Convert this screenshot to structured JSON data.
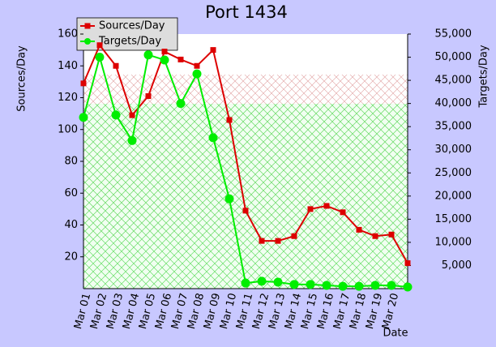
{
  "chart_data": {
    "type": "line",
    "title": "Port 1434",
    "ylabel": "Sources/Day",
    "y2label": "Targets/Day",
    "xlabel": "Date",
    "categories": [
      "Mar 01",
      "Mar 02",
      "Mar 03",
      "Mar 04",
      "Mar 05",
      "Mar 06",
      "Mar 07",
      "Mar 08",
      "Mar 09",
      "Mar 10",
      "Mar 11",
      "Mar 12",
      "Mar 13",
      "Mar 14",
      "Mar 15",
      "Mar 16",
      "Mar 17",
      "Mar 18",
      "Mar 19",
      "Mar 20",
      null
    ],
    "series": [
      {
        "name": "Sources/Day",
        "color": "#dd0000",
        "values": [
          129,
          153,
          140,
          109,
          121,
          149,
          144,
          140,
          150,
          106,
          49,
          30,
          30,
          33,
          50,
          52,
          48,
          37,
          33,
          34,
          16
        ]
      },
      {
        "name": "Targets/Day",
        "color": "#00ee00",
        "axis": "y2",
        "values": [
          37000,
          50000,
          37500,
          32000,
          50500,
          49400,
          40000,
          46400,
          32600,
          19400,
          1200,
          1600,
          1400,
          900,
          900,
          700,
          500,
          500,
          700,
          700,
          350
        ]
      }
    ],
    "ylim": [
      0,
      160
    ],
    "yticks": [
      20,
      40,
      60,
      80,
      100,
      120,
      140,
      160
    ],
    "y2lim": [
      0,
      55000
    ],
    "y2ticks": [
      {
        "value": 5000,
        "label": "5,000"
      },
      {
        "value": 10000,
        "label": "10,000"
      },
      {
        "value": 15000,
        "label": "15,000"
      },
      {
        "value": 20000,
        "label": "20,000"
      },
      {
        "value": 25000,
        "label": "25,000"
      },
      {
        "value": 30000,
        "label": "30,000"
      },
      {
        "value": 35000,
        "label": "35,000"
      },
      {
        "value": 40000,
        "label": "40,000"
      },
      {
        "value": 45000,
        "label": "45,000"
      },
      {
        "value": 50000,
        "label": "50,000"
      },
      {
        "value": 55000,
        "label": "55,000"
      }
    ],
    "legend": "upper left"
  }
}
